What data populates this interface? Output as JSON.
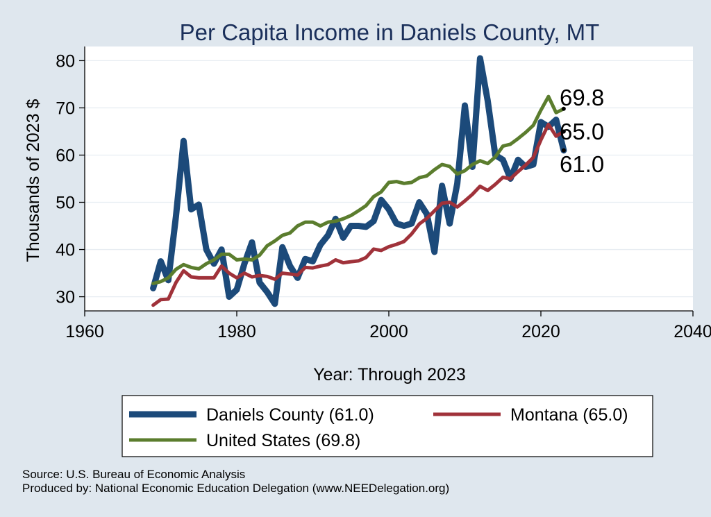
{
  "chart_data": {
    "type": "line",
    "title": "Per Capita Income in Daniels County, MT",
    "xlabel": "Year: Through 2023",
    "ylabel": "Thousands of 2023 $",
    "xlim": [
      1960,
      2040
    ],
    "ylim": [
      27,
      83
    ],
    "xticks": [
      1960,
      1980,
      2000,
      2020,
      2040
    ],
    "yticks": [
      30,
      40,
      50,
      60,
      70,
      80
    ],
    "grid": true,
    "x": [
      1969,
      1970,
      1971,
      1972,
      1973,
      1974,
      1975,
      1976,
      1977,
      1978,
      1979,
      1980,
      1981,
      1982,
      1983,
      1984,
      1985,
      1986,
      1987,
      1988,
      1989,
      1990,
      1991,
      1992,
      1993,
      1994,
      1995,
      1996,
      1997,
      1998,
      1999,
      2000,
      2001,
      2002,
      2003,
      2004,
      2005,
      2006,
      2007,
      2008,
      2009,
      2010,
      2011,
      2012,
      2013,
      2014,
      2015,
      2016,
      2017,
      2018,
      2019,
      2020,
      2021,
      2022,
      2023
    ],
    "series": [
      {
        "name": "Daniels County",
        "color": "#1c4a7a",
        "width": 9,
        "end_value": "61.0",
        "values": [
          31.8,
          37.5,
          33.5,
          47.0,
          63.0,
          48.5,
          49.5,
          40.0,
          37.0,
          40.0,
          30.0,
          31.5,
          37.0,
          41.5,
          33.0,
          31.0,
          28.5,
          40.5,
          36.5,
          34.0,
          38.0,
          37.5,
          41.0,
          43.0,
          46.5,
          42.5,
          45.0,
          45.0,
          44.8,
          46.0,
          50.5,
          48.5,
          45.5,
          45.0,
          45.5,
          50.0,
          47.5,
          39.5,
          53.5,
          45.5,
          54.0,
          70.5,
          57.5,
          80.5,
          71.5,
          60.0,
          59.0,
          55.0,
          59.0,
          57.5,
          58.0,
          67.0,
          66.0,
          67.5,
          61.0
        ]
      },
      {
        "name": "Montana",
        "color": "#a0323a",
        "width": 5,
        "end_value": "65.0",
        "values": [
          28.2,
          29.4,
          29.5,
          33.0,
          35.5,
          34.2,
          34.0,
          34.0,
          34.0,
          36.5,
          35.0,
          34.0,
          35.0,
          34.2,
          34.5,
          34.3,
          33.7,
          35.0,
          34.8,
          34.6,
          36.2,
          36.1,
          36.5,
          36.8,
          37.8,
          37.2,
          37.4,
          37.6,
          38.3,
          40.1,
          39.8,
          40.6,
          41.1,
          41.7,
          43.3,
          45.4,
          46.6,
          48.2,
          49.8,
          50.0,
          49.0,
          50.3,
          51.7,
          53.4,
          52.5,
          53.8,
          55.3,
          55.0,
          56.5,
          57.9,
          59.5,
          63.2,
          66.5,
          64.0,
          65.0
        ]
      },
      {
        "name": "United States",
        "color": "#5b7d2e",
        "width": 5,
        "end_value": "69.8",
        "values": [
          32.8,
          33.2,
          34.0,
          35.8,
          36.8,
          36.2,
          35.9,
          37.0,
          37.8,
          39.0,
          39.0,
          37.8,
          38.0,
          37.8,
          38.8,
          40.8,
          41.8,
          43.0,
          43.5,
          45.0,
          45.8,
          45.8,
          45.0,
          45.8,
          46.0,
          46.5,
          47.2,
          48.2,
          49.3,
          51.2,
          52.2,
          54.2,
          54.4,
          54.0,
          54.2,
          55.2,
          55.6,
          56.9,
          58.0,
          57.6,
          56.0,
          56.7,
          58.0,
          58.8,
          58.2,
          59.6,
          61.9,
          62.3,
          63.5,
          64.8,
          66.3,
          69.5,
          72.4,
          69.0,
          69.8
        ]
      }
    ]
  },
  "legend": [
    {
      "label": "Daniels County (61.0)",
      "color": "#1c4a7a"
    },
    {
      "label": "Montana (65.0)",
      "color": "#a0323a"
    },
    {
      "label": "United States (69.8)",
      "color": "#5b7d2e"
    }
  ],
  "footer": {
    "source": "Source: U.S. Bureau of Economic Analysis",
    "produced_by": "Produced by: National Economic Education Delegation (www.NEEDelegation.org)"
  }
}
